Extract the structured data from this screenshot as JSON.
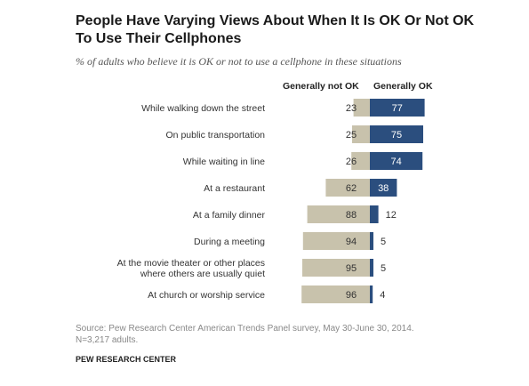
{
  "header": {
    "title": "People Have Varying Views About When It Is OK Or Not OK To Use Their Cellphones",
    "subtitle": "% of adults who believe it is OK or not to use a cellphone in these situations"
  },
  "footer": {
    "source_line1": "Source: Pew Research Center American Trends Panel survey, May 30-June 30, 2014.",
    "source_line2": "N=3,217 adults.",
    "credit": "PEW RESEARCH CENTER"
  },
  "colors": {
    "not_ok": "#c8c2ac",
    "ok": "#2b4e7e"
  },
  "chart_data": {
    "type": "bar",
    "orientation": "horizontal",
    "stacked": "diverging",
    "categories": [
      "While walking down the street",
      "On public transportation",
      "While waiting in line",
      "At a restaurant",
      "At a family dinner",
      "During a meeting",
      "At the movie theater or other places where others are usually quiet",
      "At church or worship service"
    ],
    "category_lines": [
      [
        "While walking down the street"
      ],
      [
        "On public transportation"
      ],
      [
        "While waiting in line"
      ],
      [
        "At a restaurant"
      ],
      [
        "At a family dinner"
      ],
      [
        "During a meeting"
      ],
      [
        "At the movie theater or other places",
        "where others are usually quiet"
      ],
      [
        "At church or worship service"
      ]
    ],
    "series": [
      {
        "name": "Generally not OK",
        "values": [
          23,
          25,
          26,
          62,
          88,
          94,
          95,
          96
        ]
      },
      {
        "name": "Generally OK",
        "values": [
          77,
          75,
          74,
          38,
          12,
          5,
          5,
          4
        ]
      }
    ],
    "legend_position": "top",
    "grid": false,
    "unit": "%"
  }
}
